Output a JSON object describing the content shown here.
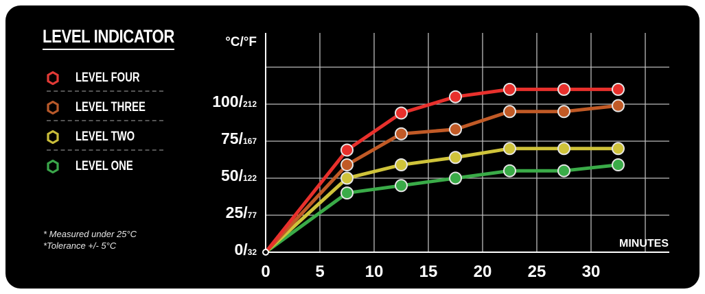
{
  "legend": {
    "title": "LEVEL INDICATOR",
    "items": [
      {
        "label": "LEVEL FOUR",
        "color": "#e23a36"
      },
      {
        "label": "LEVEL THREE",
        "color": "#b8592a"
      },
      {
        "label": "LEVEL TWO",
        "color": "#c9bd3a"
      },
      {
        "label": "LEVEL ONE",
        "color": "#3aa64a"
      }
    ]
  },
  "notes": [
    "* Measured under 25°C",
    "*Tolerance +/- 5°C"
  ],
  "chart_data": {
    "type": "line",
    "ylabel": "°C/°F",
    "xlabel": "MINUTES",
    "xlim": [
      0,
      37
    ],
    "ylim": [
      0,
      125
    ],
    "grid": true,
    "legend_placement": "left",
    "x_ticks": [
      0,
      5,
      10,
      15,
      20,
      25,
      30
    ],
    "x_tick_labels": [
      "0",
      "5",
      "10",
      "15",
      "20",
      "25",
      "30"
    ],
    "y_ticks": [
      {
        "value": 0,
        "celsius": "0/",
        "fahrenheit": "32"
      },
      {
        "value": 25,
        "celsius": "25/",
        "fahrenheit": "77"
      },
      {
        "value": 50,
        "celsius": "50/",
        "fahrenheit": "122"
      },
      {
        "value": 75,
        "celsius": "75/",
        "fahrenheit": "167"
      },
      {
        "value": 100,
        "celsius": "100/",
        "fahrenheit": "212"
      }
    ],
    "series": [
      {
        "name": "LEVEL FOUR",
        "color": "#e8302c",
        "x": [
          0,
          7.5,
          12.5,
          17.5,
          22.5,
          27.5,
          32.5
        ],
        "y": [
          0,
          69,
          94,
          105,
          110,
          110,
          110
        ]
      },
      {
        "name": "LEVEL THREE",
        "color": "#c15a26",
        "x": [
          0,
          7.5,
          12.5,
          17.5,
          22.5,
          27.5,
          32.5
        ],
        "y": [
          0,
          59,
          80,
          83,
          95,
          95,
          99
        ]
      },
      {
        "name": "LEVEL TWO",
        "color": "#cfc33a",
        "x": [
          0,
          7.5,
          12.5,
          17.5,
          22.5,
          27.5,
          32.5
        ],
        "y": [
          0,
          50,
          59,
          64,
          70,
          70,
          70
        ]
      },
      {
        "name": "LEVEL ONE",
        "color": "#3aab48",
        "x": [
          0,
          7.5,
          12.5,
          17.5,
          22.5,
          27.5,
          32.5
        ],
        "y": [
          0,
          40,
          45,
          50,
          55,
          55,
          59
        ]
      }
    ]
  }
}
